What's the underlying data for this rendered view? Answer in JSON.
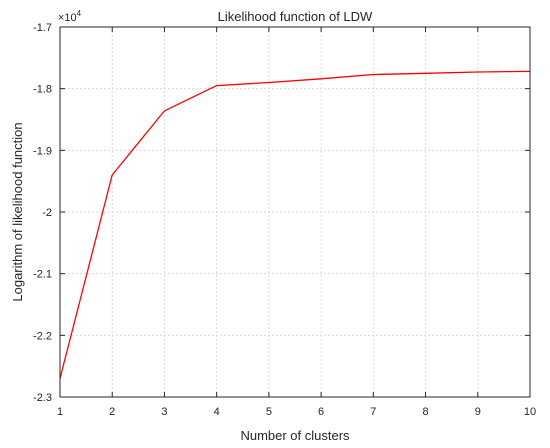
{
  "chart_data": {
    "type": "line",
    "title": "Likelihood function of LDW",
    "xlabel": "Number of clusters",
    "ylabel": "Logarithm of likelihood function",
    "y_exponent_base": "×10",
    "y_exponent_power": "4",
    "xlim": [
      1,
      10
    ],
    "ylim": [
      -2.3,
      -1.7
    ],
    "x_ticks": [
      1,
      2,
      3,
      4,
      5,
      6,
      7,
      8,
      9,
      10
    ],
    "x_tick_labels": [
      "1",
      "2",
      "3",
      "4",
      "5",
      "6",
      "7",
      "8",
      "9",
      "10"
    ],
    "y_ticks": [
      -2.3,
      -2.2,
      -2.1,
      -2.0,
      -1.9,
      -1.8,
      -1.7
    ],
    "y_tick_labels": [
      "-2.3",
      "-2.2",
      "-2.1",
      "-2",
      "-1.9",
      "-1.8",
      "-1.7"
    ],
    "grid": true,
    "series": [
      {
        "color": "#ff0000",
        "x": [
          1,
          2,
          3,
          4,
          5,
          6,
          7,
          8,
          9,
          10
        ],
        "values": [
          -2.27,
          -1.94,
          -1.836,
          -1.795,
          -1.79,
          -1.784,
          -1.777,
          -1.775,
          -1.773,
          -1.772
        ]
      }
    ]
  },
  "colors": {
    "line": "#ff0000",
    "axis": "#262626",
    "grid": "#d9d9d9"
  }
}
